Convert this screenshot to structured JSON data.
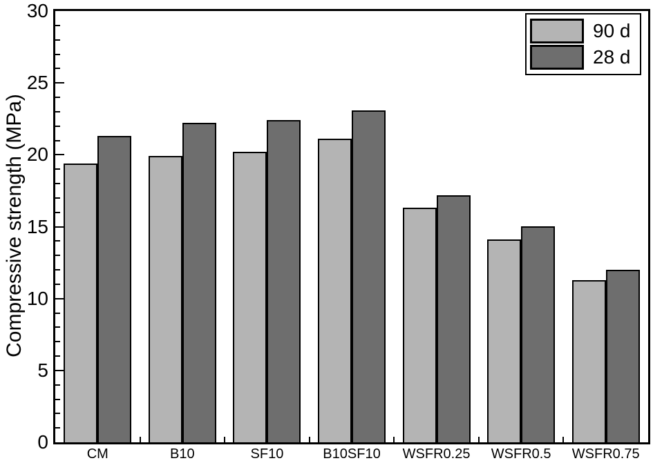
{
  "chart_data": {
    "type": "bar",
    "ylabel": "Compressive strength (MPa)",
    "ylim": [
      0,
      30
    ],
    "yticks": [
      0,
      5,
      10,
      15,
      20,
      25,
      30
    ],
    "minor_ytick_step": 1,
    "grid": false,
    "categories": [
      "CM",
      "B10",
      "SF10",
      "B10SF10",
      "WSFR0.25",
      "WSFR0.5",
      "WSFR0.75"
    ],
    "series": [
      {
        "name": "90 d",
        "color": "#b4b4b4",
        "values": [
          19.4,
          19.9,
          20.2,
          21.1,
          16.3,
          14.1,
          11.3
        ]
      },
      {
        "name": "28 d",
        "color": "#6e6e6e",
        "values": [
          21.3,
          22.2,
          22.4,
          23.1,
          17.2,
          15.0,
          12.0
        ]
      }
    ],
    "legend_position": "top-right",
    "axis_color": "#000000",
    "background": "#ffffff"
  }
}
